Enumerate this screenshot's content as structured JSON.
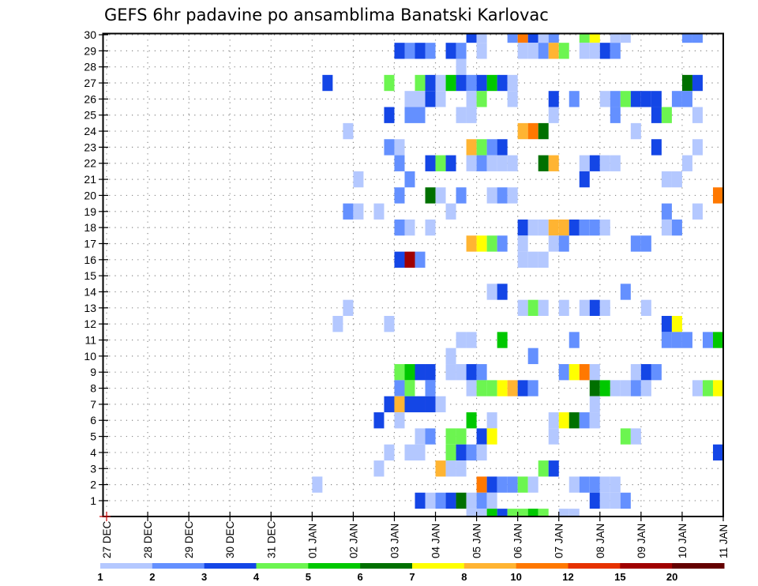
{
  "chart_data": {
    "type": "heatmap",
    "title": "GEFS 6hr padavine po ansamblima Banatski Karlovac",
    "xlabel": "",
    "ylabel": "",
    "x_tick_labels": [
      "27 DEC",
      "28 DEC",
      "29 DEC",
      "30 DEC",
      "31 DEC",
      "01 JAN",
      "02 JAN",
      "03 JAN",
      "04 JAN",
      "05 JAN",
      "06 JAN",
      "07 JAN",
      "08 JAN",
      "09 JAN",
      "10 JAN",
      "11 JAN"
    ],
    "y_tick_labels": [
      "1",
      "2",
      "3",
      "4",
      "5",
      "6",
      "7",
      "8",
      "9",
      "10",
      "11",
      "12",
      "13",
      "14",
      "15",
      "16",
      "17",
      "18",
      "19",
      "20",
      "21",
      "22",
      "23",
      "24",
      "25",
      "26",
      "27",
      "28",
      "29",
      "30"
    ],
    "ylim": [
      0,
      30
    ],
    "grid": true,
    "time_step_hours": 6,
    "cells_start": "01 JAN 00Z",
    "cell_key": {
      "a": "1-2",
      "b": "2-3",
      "c": "3-4",
      "d": "4-5",
      "e": "5-6",
      "f": "6-7",
      "g": "7-8",
      "h": "8-10",
      "i": "10-12",
      "j": "12-15",
      "k": "15-20",
      "l": ">20"
    },
    "members": [
      {
        "member": 30,
        "cells": "...............ca..bicab..dg.aa.....bb..b..."
      },
      {
        "member": 29,
        "cells": "........cbcb.cb.a...aabhd.aacb.........."
      },
      {
        "member": 28,
        "cells": "..............a........................."
      },
      {
        "member": 27,
        "cells": ".c.....d..dcaecbceca................fc.."
      },
      {
        "member": 26,
        "cells": ".........aaca..ad..a...c.b..abdccc.bb..."
      },
      {
        "member": 25,
        "cells": ".......c.bb...aa.......a.....b...cd..a."
      },
      {
        "member": 24,
        "cells": "...a................hif........a....."
      },
      {
        "member": 23,
        "cells": ".......ba......hdbc..............c...a.."
      },
      {
        "member": 22,
        "cells": "........b..cdc.abaaa..fh..acaa......a..."
      },
      {
        "member": 21,
        "cells": "....a....b................c.......aa......"
      },
      {
        "member": 20,
        "cells": "........b..fa.b..aba...................iga.."
      },
      {
        "member": 19,
        "cells": "...ba.a......a....................b..a.."
      },
      {
        "member": 18,
        "cells": "........ba.a........caahhcbba.....ab...."
      },
      {
        "member": 17,
        "cells": "...............hgdb.a..ab......bb......."
      },
      {
        "member": 16,
        "cells": "........ckb.........aaa................."
      },
      {
        "member": 15,
        "cells": "........................................"
      },
      {
        "member": 14,
        "cells": ".................ac...........b........."
      },
      {
        "member": 13,
        "cells": "...a................ada.a.aca...a......."
      },
      {
        "member": 12,
        "cells": "..a....a..........................cg...."
      },
      {
        "member": 11,
        "cells": "..............aa..e......b........bbb.be"
      },
      {
        "member": 10,
        "cells": ".............a.......b.................."
      },
      {
        "member": 9,
        "cells": "........decc.aacb.......bgia...acb......"
      },
      {
        "member": 8,
        "cells": "........bd.b...addghcb.....feaaba....adg"
      },
      {
        "member": 7,
        "cells": ".......chccca..............a............."
      },
      {
        "member": 6,
        "cells": "......c.a......e.a.....agfba............"
      },
      {
        "member": 5,
        "cells": "..........ab.dd.cg.....a......da........"
      },
      {
        "member": 4,
        "cells": ".......a.aa..dcba......................c"
      },
      {
        "member": 3,
        "cells": "......a.....haa.......dc................"
      },
      {
        "member": 2,
        "cells": "a...............icbbda...abbaa.........."
      },
      {
        "member": 1,
        "cells": "..........cabcfaba.........caab........."
      },
      {
        "member": 0,
        "cells": "...............aaecdded.aa.............."
      }
    ],
    "colorbar": {
      "labels": [
        "1",
        "2",
        "3",
        "4",
        "5",
        "6",
        "7",
        "8",
        "10",
        "12",
        "15",
        "20"
      ],
      "colors": [
        "#b4c8ff",
        "#6490ff",
        "#1446e6",
        "#6cf550",
        "#00c800",
        "#007000",
        "#ffff00",
        "#ffb432",
        "#ff7800",
        "#e63200",
        "#a00000",
        "#640000"
      ]
    }
  }
}
